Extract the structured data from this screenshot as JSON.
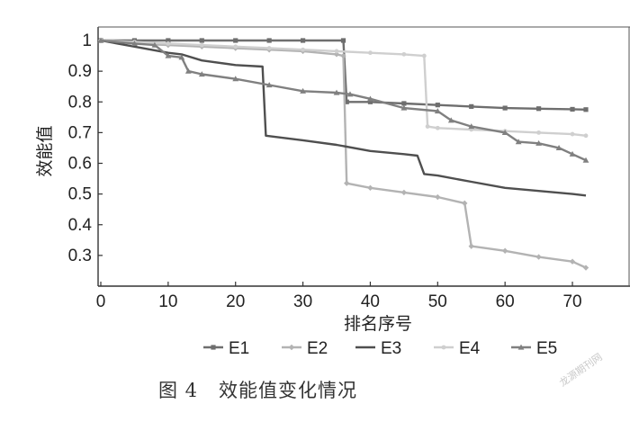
{
  "caption": "图 4   效能值变化情况",
  "watermark": "龙源期刊网",
  "chart_data": {
    "type": "line",
    "title": "",
    "xlabel": "排名序号",
    "ylabel": "效能值",
    "xlim": [
      0,
      72
    ],
    "ylim": [
      0.2,
      1.02
    ],
    "xticks": [
      0,
      10,
      20,
      30,
      40,
      50,
      60,
      70
    ],
    "yticks": [
      0.3,
      0.4,
      0.5,
      0.6,
      0.7,
      0.8,
      0.9,
      1
    ],
    "grid": "none",
    "legend": "bottom",
    "series": [
      {
        "name": "E1",
        "color": "#6e6e6e",
        "marker": "square",
        "x": [
          0,
          5,
          10,
          15,
          20,
          25,
          30,
          36,
          36.5,
          40,
          45,
          50,
          55,
          60,
          65,
          70,
          72
        ],
        "y": [
          1.0,
          1.0,
          1.0,
          1.0,
          1.0,
          1.0,
          1.0,
          1.0,
          0.8,
          0.8,
          0.795,
          0.79,
          0.785,
          0.78,
          0.778,
          0.776,
          0.775
        ]
      },
      {
        "name": "E2",
        "color": "#b3b3b3",
        "marker": "diamond",
        "x": [
          0,
          5,
          10,
          15,
          20,
          25,
          30,
          35,
          36,
          36.5,
          40,
          45,
          50,
          54,
          55,
          60,
          65,
          70,
          72
        ],
        "y": [
          1.0,
          0.99,
          0.985,
          0.98,
          0.975,
          0.97,
          0.965,
          0.955,
          0.95,
          0.535,
          0.52,
          0.505,
          0.49,
          0.47,
          0.33,
          0.315,
          0.295,
          0.28,
          0.26
        ]
      },
      {
        "name": "E3",
        "color": "#4f4f4f",
        "marker": "none",
        "x": [
          0,
          5,
          10,
          12,
          15,
          20,
          24,
          24.5,
          30,
          35,
          40,
          45,
          47,
          48,
          50,
          55,
          60,
          65,
          70,
          72
        ],
        "y": [
          1.0,
          0.98,
          0.96,
          0.955,
          0.935,
          0.92,
          0.915,
          0.69,
          0.675,
          0.66,
          0.64,
          0.63,
          0.625,
          0.565,
          0.56,
          0.54,
          0.52,
          0.51,
          0.5,
          0.495
        ]
      },
      {
        "name": "E4",
        "color": "#cfcfcf",
        "marker": "dot",
        "x": [
          0,
          5,
          10,
          15,
          20,
          25,
          30,
          35,
          40,
          45,
          48,
          48.5,
          50,
          55,
          60,
          65,
          70,
          72
        ],
        "y": [
          1.0,
          0.995,
          0.99,
          0.985,
          0.98,
          0.975,
          0.97,
          0.965,
          0.96,
          0.955,
          0.95,
          0.72,
          0.715,
          0.71,
          0.705,
          0.7,
          0.695,
          0.69
        ]
      },
      {
        "name": "E5",
        "color": "#808080",
        "marker": "triangle",
        "x": [
          0,
          5,
          8,
          10,
          12,
          13,
          15,
          20,
          25,
          30,
          35,
          37,
          40,
          45,
          50,
          52,
          55,
          60,
          62,
          65,
          68,
          70,
          72
        ],
        "y": [
          1.0,
          0.99,
          0.985,
          0.95,
          0.945,
          0.9,
          0.89,
          0.875,
          0.855,
          0.835,
          0.83,
          0.825,
          0.81,
          0.78,
          0.77,
          0.74,
          0.72,
          0.7,
          0.67,
          0.665,
          0.65,
          0.63,
          0.61
        ]
      }
    ]
  }
}
